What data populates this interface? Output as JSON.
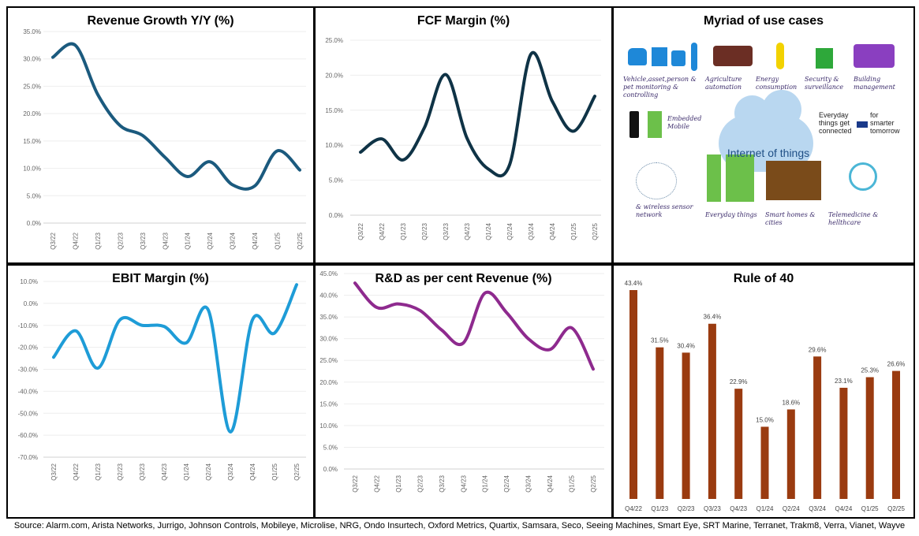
{
  "footer": "Source: Alarm.com, Arista Networks, Jurrigo, Johnson Controls, Mobileye, Microlise, NRG, Ondo Insurtech, Oxford Metrics, Quartix, Samsara, Seco, Seeing Machines, Smart Eye, SRT Marine, Terranet, Trakm8, Verra, Vianet, Wayve",
  "iot": {
    "title": "Myriad of use cases",
    "center": "Internet of things",
    "labels": [
      "Vehicle,asset,person & pet monitoring & controlling",
      "Agriculture automation",
      "Energy consumption",
      "Security & surveillance",
      "Building management",
      "Embedded Mobile",
      "Everyday things get connected",
      "for smarter tomorrow",
      "& wireless sensor network",
      "Everyday things",
      "Smart homes & cities",
      "Telemedicine & hellthcare"
    ]
  },
  "chart_data": [
    {
      "type": "line",
      "title": "Revenue Growth Y/Y (%)",
      "color": "#1b5a7e",
      "categories": [
        "Q3/22",
        "Q4/22",
        "Q1/23",
        "Q2/23",
        "Q3/23",
        "Q4/23",
        "Q1/24",
        "Q2/24",
        "Q3/24",
        "Q4/24",
        "Q1/25",
        "Q2/25"
      ],
      "values": [
        30.3,
        32.5,
        23.5,
        17.8,
        16.0,
        12.0,
        8.5,
        11.2,
        7.0,
        6.8,
        13.2,
        9.7
      ],
      "ylim": [
        0,
        35
      ],
      "yticks": [
        "0.0%",
        "5.0%",
        "10.0%",
        "15.0%",
        "20.0%",
        "25.0%",
        "30.0%",
        "35.0%"
      ],
      "ystep": 5,
      "grid": true
    },
    {
      "type": "line",
      "title": "FCF Margin (%)",
      "color": "#0f3346",
      "categories": [
        "Q3/22",
        "Q4/22",
        "Q1/23",
        "Q2/23",
        "Q3/23",
        "Q4/23",
        "Q1/24",
        "Q2/24",
        "Q3/24",
        "Q4/24",
        "Q1/25",
        "Q2/25"
      ],
      "values": [
        9.0,
        10.9,
        7.9,
        12.5,
        20.1,
        11.0,
        6.6,
        7.2,
        23.0,
        16.3,
        12.0,
        17.0
      ],
      "ylim": [
        0,
        25
      ],
      "yticks": [
        "0.0%",
        "5.0%",
        "10.0%",
        "15.0%",
        "20.0%",
        "25.0%"
      ],
      "ystep": 5,
      "grid": true
    },
    {
      "type": "line",
      "title": "EBIT Margin (%)",
      "color": "#1e9cd7",
      "categories": [
        "Q3/22",
        "Q4/22",
        "Q1/23",
        "Q2/23",
        "Q3/23",
        "Q4/23",
        "Q1/24",
        "Q2/24",
        "Q3/24",
        "Q4/24",
        "Q1/25",
        "Q2/25"
      ],
      "values": [
        -24.5,
        -12.5,
        -29.5,
        -7.5,
        -10.0,
        -10.5,
        -18.0,
        -3.0,
        -58.5,
        -7.5,
        -13.5,
        8.5
      ],
      "ylim": [
        -70,
        10
      ],
      "yticks": [
        "-70.0%",
        "-60.0%",
        "-50.0%",
        "-40.0%",
        "-30.0%",
        "-20.0%",
        "-10.0%",
        "0.0%",
        "10.0%"
      ],
      "ystep": 10,
      "grid": true
    },
    {
      "type": "line",
      "title": "R&D as per cent Revenue (%)",
      "color": "#8e2a8e",
      "categories": [
        "Q3/22",
        "Q4/22",
        "Q1/23",
        "Q2/23",
        "Q3/23",
        "Q4/23",
        "Q1/24",
        "Q2/24",
        "Q3/24",
        "Q4/24",
        "Q1/25",
        "Q2/25"
      ],
      "values": [
        42.8,
        37.2,
        38.0,
        36.5,
        32.0,
        29.0,
        40.5,
        36.0,
        30.0,
        27.5,
        32.5,
        23.0
      ],
      "ylim": [
        0,
        45
      ],
      "yticks": [
        "0.0%",
        "5.0%",
        "10.0%",
        "15.0%",
        "20.0%",
        "25.0%",
        "30.0%",
        "35.0%",
        "40.0%",
        "45.0%"
      ],
      "ystep": 5,
      "grid": true
    },
    {
      "type": "bar",
      "title": "Rule of 40",
      "color": "#9a3b10",
      "categories": [
        "Q4/22",
        "Q1/23",
        "Q2/23",
        "Q3/23",
        "Q4/23",
        "Q1/24",
        "Q2/24",
        "Q3/24",
        "Q4/24",
        "Q1/25",
        "Q2/25"
      ],
      "values": [
        43.4,
        31.5,
        30.4,
        36.4,
        22.9,
        15.0,
        18.6,
        29.6,
        23.1,
        25.3,
        26.6
      ],
      "labels": [
        "43.4%",
        "31.5%",
        "30.4%",
        "36.4%",
        "22.9%",
        "15.0%",
        "18.6%",
        "29.6%",
        "23.1%",
        "25.3%",
        "26.6%"
      ],
      "ylim": [
        0,
        45
      ],
      "grid": false
    }
  ]
}
